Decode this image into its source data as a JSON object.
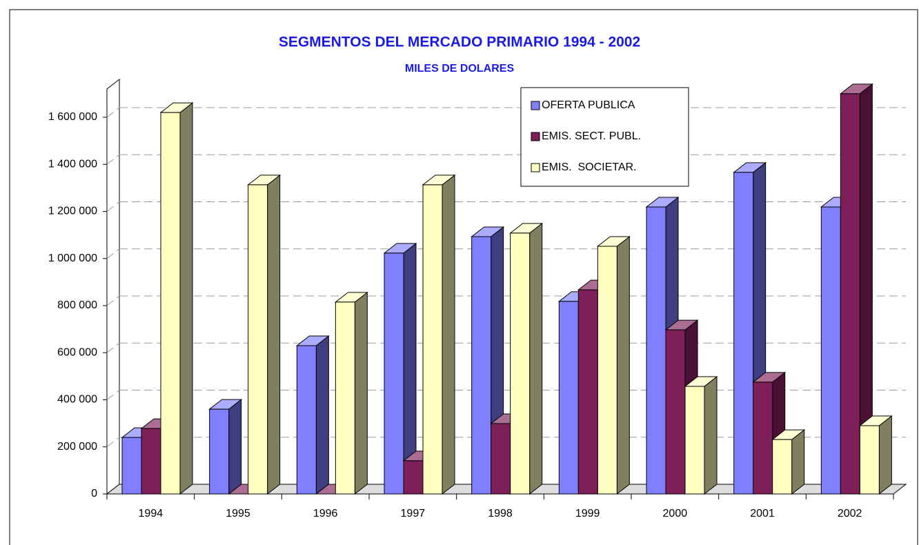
{
  "chart_data": {
    "type": "bar3d",
    "title": "SEGMENTOS DEL MERCADO PRIMARIO 1994 - 2002",
    "subtitle": "MILES DE DOLARES",
    "categories": [
      "1994",
      "1995",
      "1996",
      "1997",
      "1998",
      "1999",
      "2000",
      "2001",
      "2002"
    ],
    "series": [
      {
        "name": "OFERTA PUBLICA",
        "color": "#8080ff",
        "side": "#3e3e80",
        "values": [
          240000,
          360000,
          630000,
          1023000,
          1093000,
          818000,
          1219000,
          1366000,
          1219000
        ]
      },
      {
        "name": "EMIS. SECT. PUBL.",
        "color": "#7f1f5a",
        "side": "#4a1035",
        "values": [
          278000,
          0,
          0,
          141000,
          299000,
          867000,
          697000,
          475000,
          1700000
        ]
      },
      {
        "name": "EMIS.  SOCIETAR.",
        "color": "#ffffc0",
        "side": "#808060",
        "values": [
          1620000,
          1313000,
          815000,
          1313000,
          1108000,
          1052000,
          457000,
          231000,
          290000
        ]
      }
    ],
    "ylim": [
      0,
      1720000
    ],
    "yticks": [
      0,
      {
        "value": 200000,
        "label": "200 000"
      },
      {
        "value": 400000,
        "label": "400 000"
      },
      {
        "value": 600000,
        "label": "600 000"
      },
      {
        "value": 800000,
        "label": "800 000"
      },
      {
        "value": 1000000,
        "label": "1 000 000"
      },
      {
        "value": 1200000,
        "label": "1 200 000"
      },
      {
        "value": 1400000,
        "label": "1 400 000"
      },
      {
        "value": 1600000,
        "label": "1 600 000"
      }
    ],
    "grid": true,
    "legend": "top-right"
  }
}
